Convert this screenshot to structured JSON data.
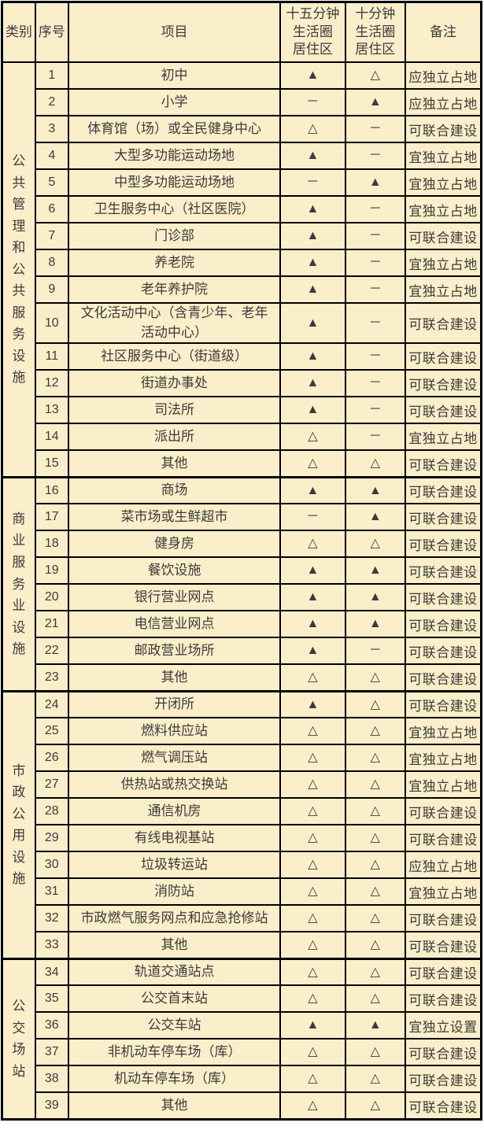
{
  "page": {
    "background": "#ffffff",
    "table_background": "#FBEECA",
    "border_color": "#000000",
    "text_color": "#3b3b3b"
  },
  "header": {
    "category": "类别",
    "no": "序号",
    "item": "项目",
    "circle15": "十五分钟\n生活圈\n居住区",
    "circle10": "十分钟\n生活圈\n居住区",
    "remark": "备注"
  },
  "symbols": {
    "filled_triangle": "▲",
    "hollow_triangle": "△",
    "dash": "－"
  },
  "groups": [
    {
      "category": "公共管理和公共服务设施",
      "rows": [
        {
          "no": "1",
          "item": "初中",
          "c15": "▲",
          "c10": "△",
          "remark": "应独立占地"
        },
        {
          "no": "2",
          "item": "小学",
          "c15": "－",
          "c10": "▲",
          "remark": "应独立占地"
        },
        {
          "no": "3",
          "item": "体育馆（场）或全民健身中心",
          "c15": "△",
          "c10": "－",
          "remark": "可联合建设"
        },
        {
          "no": "4",
          "item": "大型多功能运动场地",
          "c15": "▲",
          "c10": "－",
          "remark": "宜独立占地"
        },
        {
          "no": "5",
          "item": "中型多功能运动场地",
          "c15": "－",
          "c10": "▲",
          "remark": "宜独立占地"
        },
        {
          "no": "6",
          "item": "卫生服务中心（社区医院）",
          "c15": "▲",
          "c10": "－",
          "remark": "宜独立占地"
        },
        {
          "no": "7",
          "item": "门诊部",
          "c15": "▲",
          "c10": "－",
          "remark": "可联合建设"
        },
        {
          "no": "8",
          "item": "养老院",
          "c15": "▲",
          "c10": "－",
          "remark": "宜独立占地"
        },
        {
          "no": "9",
          "item": "老年养护院",
          "c15": "▲",
          "c10": "－",
          "remark": "宜独立占地"
        },
        {
          "no": "10",
          "item": "文化活动中心（含青少年、老年\n活动中心）",
          "c15": "▲",
          "c10": "－",
          "remark": "可联合建设"
        },
        {
          "no": "11",
          "item": "社区服务中心（街道级）",
          "c15": "▲",
          "c10": "－",
          "remark": "可联合建设"
        },
        {
          "no": "12",
          "item": "街道办事处",
          "c15": "▲",
          "c10": "－",
          "remark": "可联合建设"
        },
        {
          "no": "13",
          "item": "司法所",
          "c15": "▲",
          "c10": "－",
          "remark": "可联合建设"
        },
        {
          "no": "14",
          "item": "派出所",
          "c15": "△",
          "c10": "－",
          "remark": "宜独立占地"
        },
        {
          "no": "15",
          "item": "其他",
          "c15": "△",
          "c10": "△",
          "remark": "可联合建设"
        }
      ]
    },
    {
      "category": "商业服务业设施",
      "rows": [
        {
          "no": "16",
          "item": "商场",
          "c15": "▲",
          "c10": "▲",
          "remark": "可联合建设"
        },
        {
          "no": "17",
          "item": "菜市场或生鲜超市",
          "c15": "－",
          "c10": "▲",
          "remark": "可联合建设"
        },
        {
          "no": "18",
          "item": "健身房",
          "c15": "△",
          "c10": "△",
          "remark": "可联合建设"
        },
        {
          "no": "19",
          "item": "餐饮设施",
          "c15": "▲",
          "c10": "▲",
          "remark": "可联合建设"
        },
        {
          "no": "20",
          "item": "银行营业网点",
          "c15": "▲",
          "c10": "▲",
          "remark": "可联合建设"
        },
        {
          "no": "21",
          "item": "电信营业网点",
          "c15": "▲",
          "c10": "▲",
          "remark": "可联合建设"
        },
        {
          "no": "22",
          "item": "邮政营业场所",
          "c15": "▲",
          "c10": "－",
          "remark": "可联合建设"
        },
        {
          "no": "23",
          "item": "其他",
          "c15": "△",
          "c10": "△",
          "remark": "可联合建设"
        }
      ]
    },
    {
      "category": "市政公用设施",
      "rows": [
        {
          "no": "24",
          "item": "开闭所",
          "c15": "▲",
          "c10": "△",
          "remark": "可联合建设"
        },
        {
          "no": "25",
          "item": "燃料供应站",
          "c15": "△",
          "c10": "△",
          "remark": "宜独立占地"
        },
        {
          "no": "26",
          "item": "燃气调压站",
          "c15": "△",
          "c10": "△",
          "remark": "宜独立占地"
        },
        {
          "no": "27",
          "item": "供热站或热交换站",
          "c15": "△",
          "c10": "△",
          "remark": "宜独立占地"
        },
        {
          "no": "28",
          "item": "通信机房",
          "c15": "△",
          "c10": "△",
          "remark": "可联合建设"
        },
        {
          "no": "29",
          "item": "有线电视基站",
          "c15": "△",
          "c10": "△",
          "remark": "可联合建设"
        },
        {
          "no": "30",
          "item": "垃圾转运站",
          "c15": "△",
          "c10": "△",
          "remark": "应独立占地"
        },
        {
          "no": "31",
          "item": "消防站",
          "c15": "△",
          "c10": "△",
          "remark": "宜独立占地"
        },
        {
          "no": "32",
          "item": "市政燃气服务网点和应急抢修站",
          "c15": "△",
          "c10": "△",
          "remark": "可联合建设"
        },
        {
          "no": "33",
          "item": "其他",
          "c15": "△",
          "c10": "△",
          "remark": "可联合建设"
        }
      ]
    },
    {
      "category": "公交场站",
      "rows": [
        {
          "no": "34",
          "item": "轨道交通站点",
          "c15": "△",
          "c10": "△",
          "remark": "可联合建设"
        },
        {
          "no": "35",
          "item": "公交首末站",
          "c15": "△",
          "c10": "△",
          "remark": "可联合建设"
        },
        {
          "no": "36",
          "item": "公交车站",
          "c15": "▲",
          "c10": "▲",
          "remark": "宜独立设置"
        },
        {
          "no": "37",
          "item": "非机动车停车场（库）",
          "c15": "△",
          "c10": "△",
          "remark": "可联合建设"
        },
        {
          "no": "38",
          "item": "机动车停车场（库）",
          "c15": "△",
          "c10": "△",
          "remark": "可联合建设"
        },
        {
          "no": "39",
          "item": "其他",
          "c15": "△",
          "c10": "△",
          "remark": "可联合建设"
        }
      ]
    }
  ]
}
